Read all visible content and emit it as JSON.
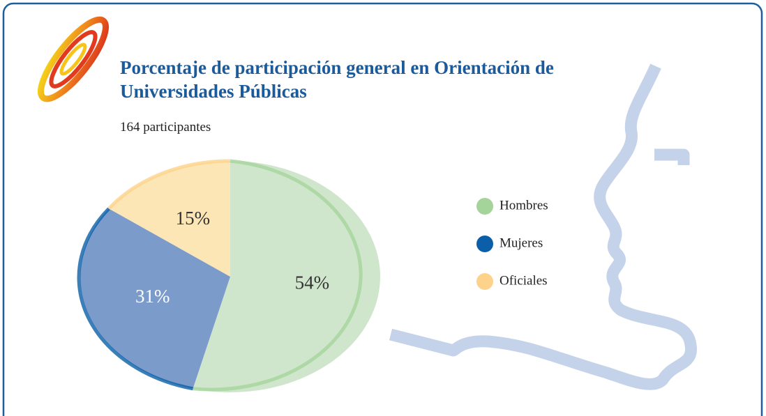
{
  "chart_data": {
    "type": "pie",
    "title": "Porcentaje de participación general en Orientación de Universidades Públicas",
    "subtitle": "164 participantes",
    "categories": [
      "Hombres",
      "Mujeres",
      "Oficiales"
    ],
    "values": [
      54,
      31,
      15
    ],
    "value_labels": [
      "54%",
      "31%",
      "15%"
    ],
    "colors": [
      "#a5d49b",
      "#0a5fa8",
      "#fdd28a"
    ],
    "slice_colors": [
      "#d0e6cc",
      "#7b9bcb",
      "#fde6b6"
    ]
  }
}
